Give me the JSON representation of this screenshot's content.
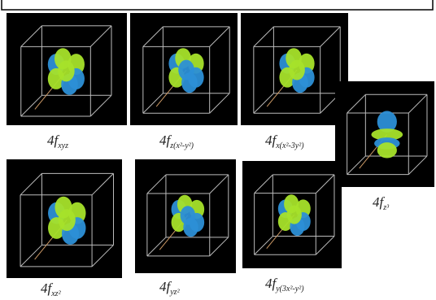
{
  "orbitals": [
    {
      "main": "4f",
      "sub": "xyz"
    },
    {
      "main": "4f",
      "sub": "z(x²-y²)"
    },
    {
      "main": "4f",
      "sub": "x(x²-3y²)"
    },
    {
      "main": "4f",
      "sub": "z³"
    },
    {
      "main": "4f",
      "sub": "xz²"
    },
    {
      "main": "4f",
      "sub": "yz²"
    },
    {
      "main": "4f",
      "sub": "y(3x²-y²)"
    }
  ]
}
